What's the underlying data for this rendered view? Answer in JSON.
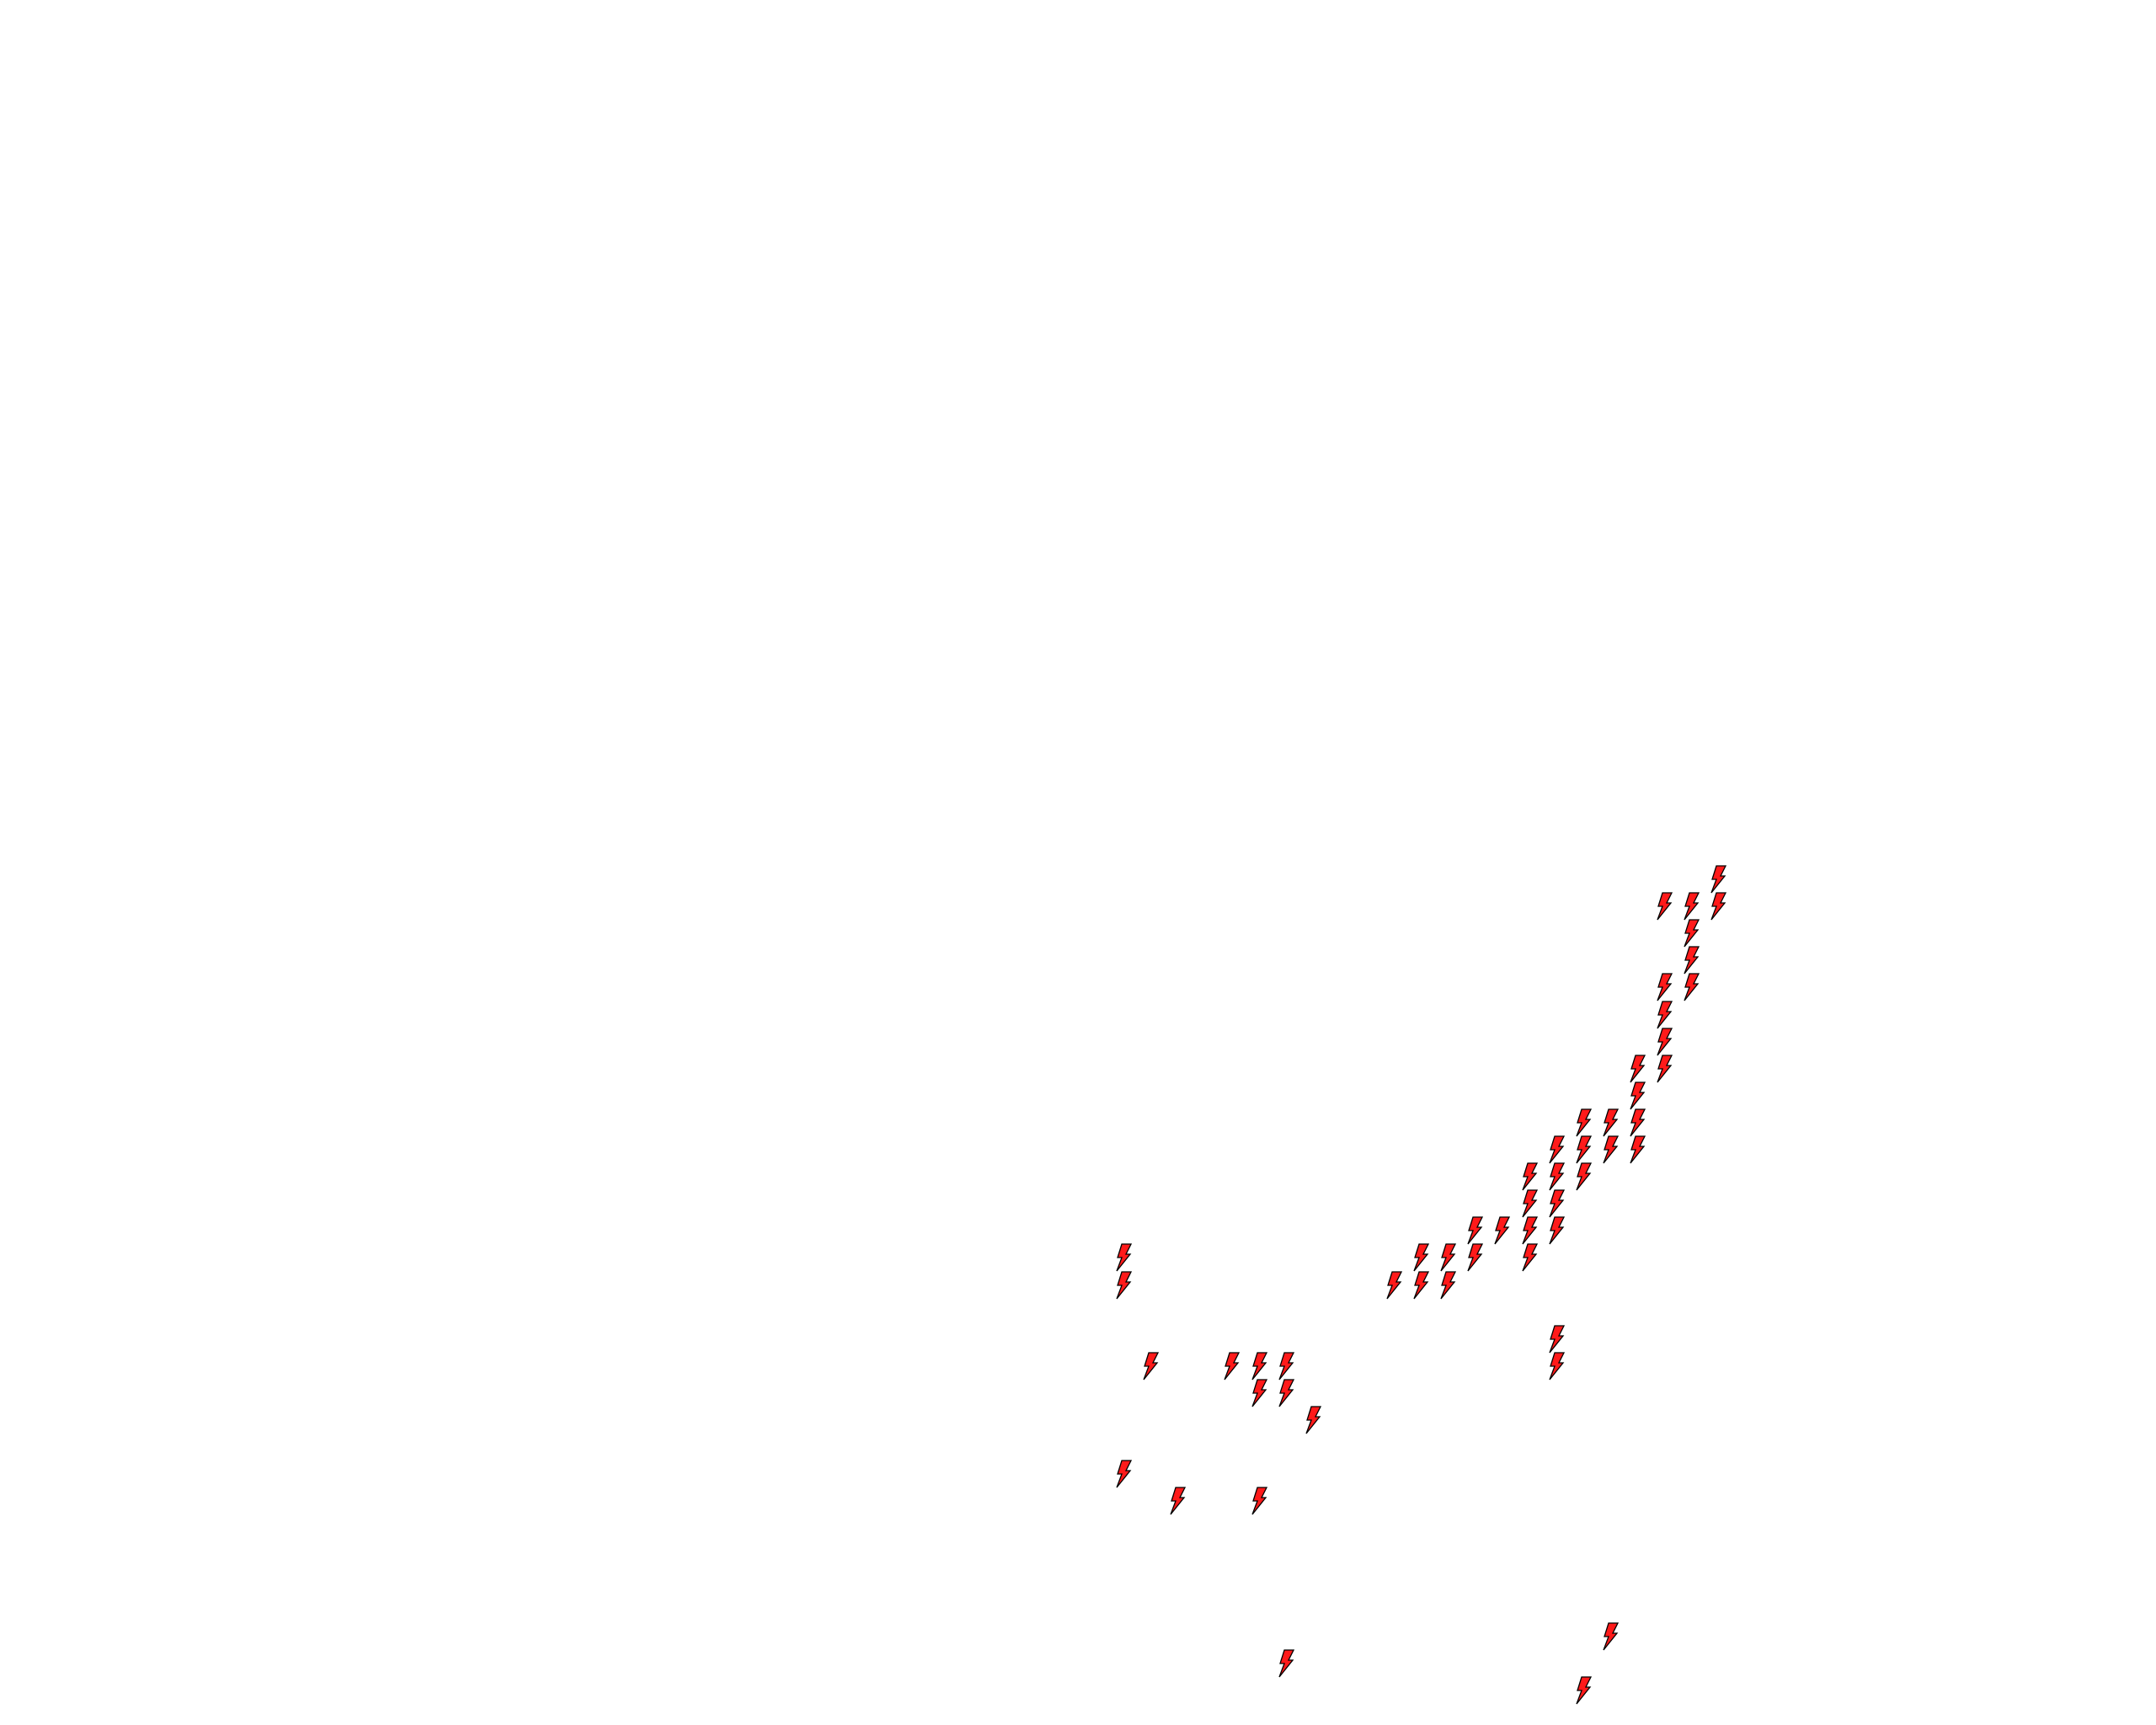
{
  "map": {
    "background": "#ffffff",
    "marker_icon": "lightning-bolt-icon",
    "marker_fill": "#ff1a1a",
    "marker_stroke": "#000000"
  }
}
